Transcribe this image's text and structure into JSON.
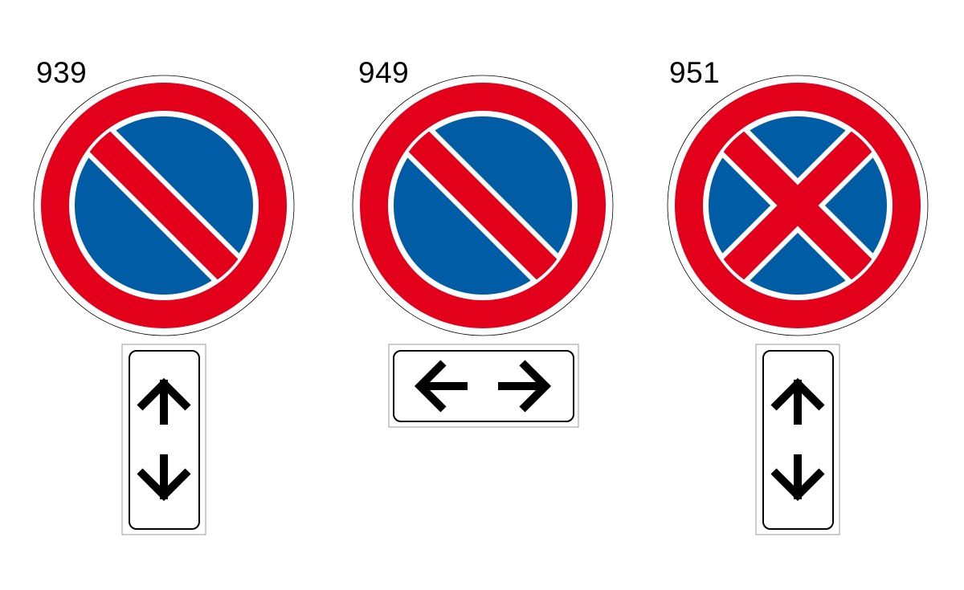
{
  "colors": {
    "red": "#e2001a",
    "blue": "#005ca4",
    "white": "#ffffff",
    "black": "#000000"
  },
  "signs": [
    {
      "code": "939",
      "type": "no-parking",
      "icon": "no-parking-sign-icon",
      "panel": {
        "orientation": "vertical",
        "arrows": [
          "up",
          "down"
        ]
      }
    },
    {
      "code": "949",
      "type": "no-parking",
      "icon": "no-parking-sign-icon",
      "panel": {
        "orientation": "horizontal",
        "arrows": [
          "left",
          "right"
        ]
      }
    },
    {
      "code": "951",
      "type": "no-stopping",
      "icon": "no-stopping-sign-icon",
      "panel": {
        "orientation": "vertical",
        "arrows": [
          "up",
          "down"
        ]
      }
    }
  ]
}
